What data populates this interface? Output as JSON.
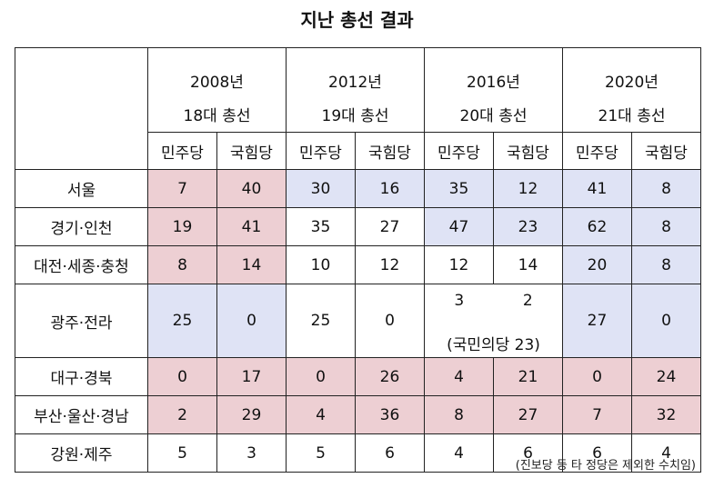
{
  "title": "지난 총선 결과",
  "elections": [
    {
      "year": "2008년",
      "name": "18대 총선"
    },
    {
      "year": "2012년",
      "name": "19대 총선"
    },
    {
      "year": "2016년",
      "name": "20대 총선"
    },
    {
      "year": "2020년",
      "name": "21대 총선"
    }
  ],
  "parties": [
    "민주당",
    "국힘당"
  ],
  "rows": [
    {
      "region": "서울",
      "values": [
        "7",
        "40",
        "30",
        "16",
        "35",
        "12",
        "41",
        "8"
      ]
    },
    {
      "region": "경기·인천",
      "values": [
        "19",
        "41",
        "35",
        "27",
        "47",
        "23",
        "62",
        "8"
      ]
    },
    {
      "region": "대전·세종·충청",
      "values": [
        "8",
        "14",
        "10",
        "12",
        "12",
        "14",
        "20",
        "8"
      ]
    },
    {
      "region": "광주·전라",
      "values": [
        "25",
        "0",
        "25",
        "0",
        "3",
        "2",
        "27",
        "0"
      ],
      "note": "(국민의당 23)"
    },
    {
      "region": "대구·경북",
      "values": [
        "0",
        "17",
        "0",
        "26",
        "4",
        "21",
        "0",
        "24"
      ]
    },
    {
      "region": "부산·울산·경남",
      "values": [
        "2",
        "29",
        "4",
        "36",
        "8",
        "27",
        "7",
        "32"
      ]
    },
    {
      "region": "강원·제주",
      "values": [
        "5",
        "3",
        "5",
        "6",
        "4",
        "6",
        "6",
        "4"
      ]
    }
  ],
  "colors": {
    "red_fill": "#edcfd3",
    "blue_fill": "#dfe3f5"
  },
  "footnote": "(진보당 등 타 정당은 제외한 수치임)"
}
